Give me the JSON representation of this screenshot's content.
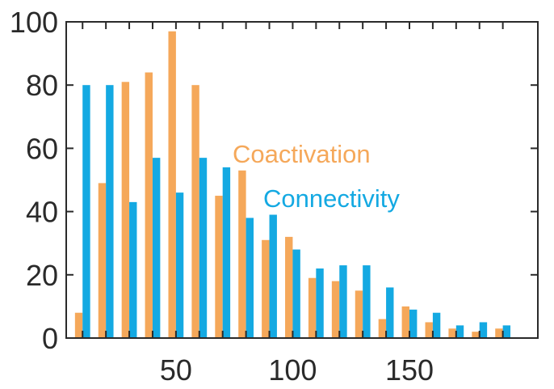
{
  "chart_data": {
    "type": "bar",
    "title": "",
    "xlabel": "",
    "ylabel": "",
    "xlim": [
      3,
      205
    ],
    "ylim": [
      0,
      100
    ],
    "xticks": [
      50,
      100,
      150
    ],
    "xtick_labels": [
      "50",
      "100",
      "150"
    ],
    "yticks": [
      0,
      20,
      40,
      60,
      80,
      100
    ],
    "ytick_labels": [
      "0",
      "20",
      "40",
      "60",
      "80",
      "100"
    ],
    "grid": false,
    "legend_placement": "center-right",
    "series": [
      {
        "name": "Coactivation",
        "color": "#F5A85A",
        "x": [
          10,
          20,
          30,
          40,
          50,
          60,
          70,
          80,
          90,
          100,
          110,
          120,
          130,
          140,
          150,
          160,
          170,
          180,
          190
        ],
        "values": [
          8,
          49,
          81,
          84,
          97,
          80,
          45,
          53,
          31,
          32,
          19,
          18,
          15,
          6,
          10,
          5,
          3,
          2,
          3
        ]
      },
      {
        "name": "Connectivity",
        "color": "#14A9E2",
        "x": [
          10,
          20,
          30,
          40,
          50,
          60,
          70,
          80,
          90,
          100,
          110,
          120,
          130,
          140,
          150,
          160,
          170,
          180,
          190
        ],
        "values": [
          80,
          80,
          43,
          57,
          46,
          57,
          54,
          38,
          39,
          28,
          22,
          23,
          23,
          16,
          9,
          8,
          4,
          5,
          4
        ]
      }
    ]
  }
}
